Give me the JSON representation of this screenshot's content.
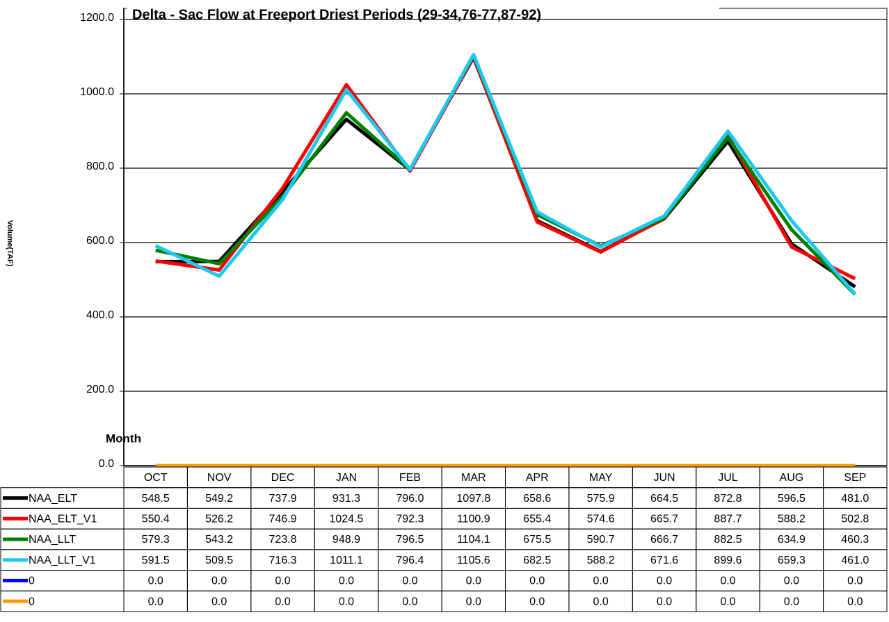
{
  "chart_data": {
    "type": "line",
    "title": "Delta - Sac Flow at Freeport Driest Periods (29-34,76-77,87-92)",
    "y_label": "Volume(TAF)",
    "x_label": "Month",
    "categories": [
      "OCT",
      "NOV",
      "DEC",
      "JAN",
      "FEB",
      "MAR",
      "APR",
      "MAY",
      "JUN",
      "JUL",
      "AUG",
      "SEP"
    ],
    "ylim": [
      0,
      1200
    ],
    "yticks": [
      {
        "value": 0,
        "label": "0.0"
      },
      {
        "value": 200,
        "label": "200.0"
      },
      {
        "value": 400,
        "label": "400.0"
      },
      {
        "value": 600,
        "label": "600.0"
      },
      {
        "value": 800,
        "label": "800.0"
      },
      {
        "value": 1000,
        "label": "1000.0"
      },
      {
        "value": 1200,
        "label": "1200.0"
      }
    ],
    "grid": true,
    "series": [
      {
        "name": "NAA_ELT",
        "color": "#000000",
        "values": [
          548.5,
          549.2,
          737.9,
          931.3,
          796,
          1097.8,
          658.6,
          575.9,
          664.5,
          872.8,
          596.5,
          481
        ],
        "value_labels": [
          "548.5",
          "549.2",
          "737.9",
          "931.3",
          "796.0",
          "1097.8",
          "658.6",
          "575.9",
          "664.5",
          "872.8",
          "596.5",
          "481.0"
        ]
      },
      {
        "name": "NAA_ELT_V1",
        "color": "#ff0000",
        "values": [
          550.4,
          526.2,
          746.9,
          1024.5,
          792.3,
          1100.9,
          655.4,
          574.6,
          665.7,
          887.7,
          588.2,
          502.8
        ],
        "value_labels": [
          "550.4",
          "526.2",
          "746.9",
          "1024.5",
          "792.3",
          "1100.9",
          "655.4",
          "574.6",
          "665.7",
          "887.7",
          "588.2",
          "502.8"
        ]
      },
      {
        "name": "NAA_LLT",
        "color": "#008000",
        "values": [
          579.3,
          543.2,
          723.8,
          948.9,
          796.5,
          1104.1,
          675.5,
          590.7,
          666.7,
          882.5,
          634.9,
          460.3
        ],
        "value_labels": [
          "579.3",
          "543.2",
          "723.8",
          "948.9",
          "796.5",
          "1104.1",
          "675.5",
          "590.7",
          "666.7",
          "882.5",
          "634.9",
          "460.3"
        ]
      },
      {
        "name": "NAA_LLT_V1",
        "color": "#1ec8f0",
        "values": [
          591.5,
          509.5,
          716.3,
          1011.1,
          796.4,
          1105.6,
          682.5,
          588.2,
          671.6,
          899.6,
          659.3,
          461
        ],
        "value_labels": [
          "591.5",
          "509.5",
          "716.3",
          "1011.1",
          "796.4",
          "1105.6",
          "682.5",
          "588.2",
          "671.6",
          "899.6",
          "659.3",
          "461.0"
        ]
      },
      {
        "name": "0",
        "color": "#0000ff",
        "values": [
          0,
          0,
          0,
          0,
          0,
          0,
          0,
          0,
          0,
          0,
          0,
          0
        ],
        "value_labels": [
          "0.0",
          "0.0",
          "0.0",
          "0.0",
          "0.0",
          "0.0",
          "0.0",
          "0.0",
          "0.0",
          "0.0",
          "0.0",
          "0.0"
        ]
      },
      {
        "name": "0",
        "color": "#ff9900",
        "values": [
          0,
          0,
          0,
          0,
          0,
          0,
          0,
          0,
          0,
          0,
          0,
          0
        ],
        "value_labels": [
          "0.0",
          "0.0",
          "0.0",
          "0.0",
          "0.0",
          "0.0",
          "0.0",
          "0.0",
          "0.0",
          "0.0",
          "0.0",
          "0.0"
        ]
      }
    ]
  }
}
